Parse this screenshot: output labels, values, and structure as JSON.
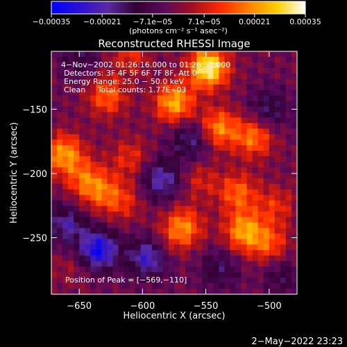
{
  "chart_data": {
    "type": "heatmap",
    "title": "Reconstructed RHESSI Image",
    "xlabel": "Heliocentric X (arcsec)",
    "ylabel": "Heliocentric Y (arcsec)",
    "xlim": [
      -672,
      -478
    ],
    "ylim": [
      -294,
      -105
    ],
    "x_ticks": [
      {
        "value": -650,
        "label": "−650"
      },
      {
        "value": -600,
        "label": "−600"
      },
      {
        "value": -550,
        "label": "−550"
      },
      {
        "value": -500,
        "label": "−500"
      }
    ],
    "y_ticks": [
      {
        "value": -150,
        "label": "−150"
      },
      {
        "value": -200,
        "label": "−200"
      },
      {
        "value": -250,
        "label": "−250"
      }
    ],
    "colorbar": {
      "range": [
        -0.00035,
        0.00035
      ],
      "units_label": "(photons cm⁻² s⁻¹ asec⁻²)",
      "ticks": [
        {
          "value": -0.00035,
          "label": "−0.00035"
        },
        {
          "value": -0.00021,
          "label": "−0.00021"
        },
        {
          "value": -7.1e-05,
          "label": "−7.1e−05"
        },
        {
          "value": 7.1e-05,
          "label": "7.1e−05"
        },
        {
          "value": 0.00021,
          "label": "0.00021"
        },
        {
          "value": 0.00035,
          "label": "0.00035"
        }
      ],
      "colors": [
        "#0000ff",
        "#2a10d0",
        "#5a2aa0",
        "#330033",
        "#5a0a5a",
        "#a01020",
        "#ff2a00",
        "#ff8000",
        "#ffd000",
        "#ffffff"
      ]
    },
    "annotations": [
      "4−Nov−2002 01:26:16.000 to 01:26:52.000",
      "Detectors: 3F 4F 5F 6F 7F 8F, Att 0",
      "Energy Range: 25.0 − 50.0 keV",
      "Clean     Total counts: 1.77E+03"
    ],
    "peak_label": "Position of Peak = [−569,−110]",
    "peak": {
      "x": -569,
      "y": -110
    },
    "hotspots": [
      {
        "x": -548,
        "y": -118,
        "value": 0.00035
      },
      {
        "x": -575,
        "y": -145,
        "value": 0.00026
      },
      {
        "x": -540,
        "y": -165,
        "value": 0.00022
      },
      {
        "x": -512,
        "y": -172,
        "value": 0.0002
      },
      {
        "x": -628,
        "y": -140,
        "value": 0.00018
      },
      {
        "x": -662,
        "y": -185,
        "value": 0.00024
      },
      {
        "x": -645,
        "y": -205,
        "value": 0.00016
      },
      {
        "x": -610,
        "y": -188,
        "value": 0.00012
      },
      {
        "x": -632,
        "y": -215,
        "value": 0.00014
      },
      {
        "x": -555,
        "y": -205,
        "value": 0.0001
      },
      {
        "x": -525,
        "y": -215,
        "value": 0.00018
      },
      {
        "x": -495,
        "y": -225,
        "value": 0.00012
      },
      {
        "x": -568,
        "y": -242,
        "value": 0.00022
      },
      {
        "x": -520,
        "y": -245,
        "value": 0.00024
      },
      {
        "x": -500,
        "y": -255,
        "value": 0.00016
      },
      {
        "x": -615,
        "y": -222,
        "value": 0.00011
      },
      {
        "x": -585,
        "y": -258,
        "value": 8e-05
      },
      {
        "x": -655,
        "y": -272,
        "value": 6e-05
      },
      {
        "x": -610,
        "y": -108,
        "value": 0.00012
      }
    ],
    "coldspots": [
      {
        "x": -635,
        "y": -260,
        "value": -0.0003
      },
      {
        "x": -595,
        "y": -265,
        "value": -0.00026
      },
      {
        "x": -660,
        "y": -240,
        "value": -0.00018
      },
      {
        "x": -585,
        "y": -205,
        "value": -0.0002
      },
      {
        "x": -562,
        "y": -175,
        "value": -0.00016
      },
      {
        "x": -500,
        "y": -150,
        "value": -0.00014
      },
      {
        "x": -650,
        "y": -110,
        "value": -0.0001
      },
      {
        "x": -540,
        "y": -275,
        "value": -0.00012
      },
      {
        "x": -490,
        "y": -280,
        "value": -0.0001
      }
    ]
  },
  "footer": {
    "timestamp": "2−May−2022 23:23"
  }
}
